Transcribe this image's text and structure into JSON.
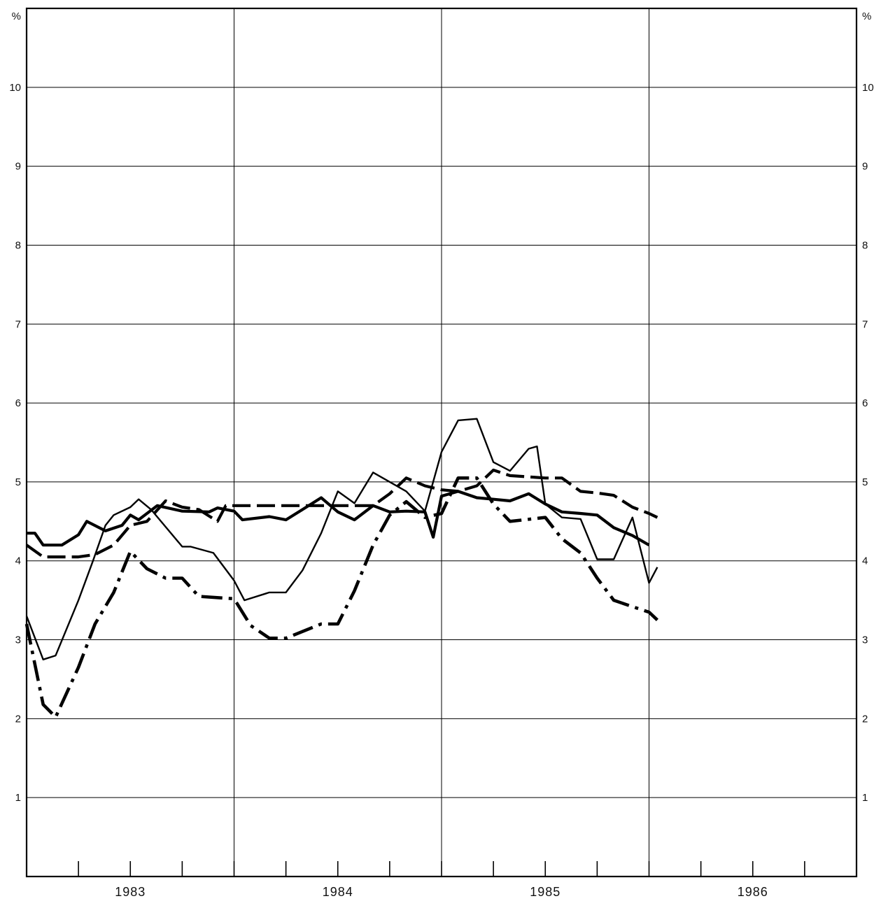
{
  "chart_data": {
    "type": "line",
    "title": "",
    "xlabel": "",
    "ylabel": "",
    "y_unit_left": "%",
    "y_unit_right": "%",
    "ylim": [
      0,
      11
    ],
    "y_ticks": [
      "1",
      "2",
      "3",
      "4",
      "5",
      "6",
      "7",
      "8",
      "9",
      "10"
    ],
    "xlim": [
      1982.5,
      1986.5
    ],
    "x_labels": [
      {
        "x": 1983,
        "text": "1983"
      },
      {
        "x": 1984,
        "text": "1984"
      },
      {
        "x": 1985,
        "text": "1985"
      },
      {
        "x": 1986,
        "text": "1986"
      }
    ],
    "x_gridlines": [
      1983.5,
      1984.5,
      1985.5
    ],
    "grid": true,
    "legend": "none",
    "series": [
      {
        "style": "thin-solid",
        "points": [
          [
            1982.5,
            3.3
          ],
          [
            1982.58,
            2.75
          ],
          [
            1982.64,
            2.8
          ],
          [
            1982.75,
            3.5
          ],
          [
            1982.82,
            4.0
          ],
          [
            1982.88,
            4.45
          ],
          [
            1982.92,
            4.58
          ],
          [
            1983.0,
            4.68
          ],
          [
            1983.04,
            4.78
          ],
          [
            1983.1,
            4.65
          ],
          [
            1983.25,
            4.18
          ],
          [
            1983.29,
            4.18
          ],
          [
            1983.4,
            4.1
          ],
          [
            1983.5,
            3.75
          ],
          [
            1983.55,
            3.5
          ],
          [
            1983.67,
            3.6
          ],
          [
            1983.75,
            3.6
          ],
          [
            1983.83,
            3.88
          ],
          [
            1983.92,
            4.35
          ],
          [
            1984.0,
            4.88
          ],
          [
            1984.08,
            4.73
          ],
          [
            1984.17,
            5.12
          ],
          [
            1984.33,
            4.88
          ],
          [
            1984.42,
            4.63
          ],
          [
            1984.5,
            5.38
          ],
          [
            1984.58,
            5.78
          ],
          [
            1984.67,
            5.8
          ],
          [
            1984.75,
            5.25
          ],
          [
            1984.83,
            5.14
          ],
          [
            1984.92,
            5.42
          ],
          [
            1984.96,
            5.45
          ],
          [
            1985.0,
            4.72
          ],
          [
            1985.08,
            4.55
          ],
          [
            1985.17,
            4.53
          ],
          [
            1985.25,
            4.02
          ],
          [
            1985.33,
            4.02
          ],
          [
            1985.42,
            4.55
          ],
          [
            1985.5,
            3.72
          ],
          [
            1985.54,
            3.92
          ]
        ]
      },
      {
        "style": "thick-solid",
        "points": [
          [
            1982.5,
            4.35
          ],
          [
            1982.54,
            4.35
          ],
          [
            1982.58,
            4.2
          ],
          [
            1982.67,
            4.2
          ],
          [
            1982.75,
            4.33
          ],
          [
            1982.79,
            4.5
          ],
          [
            1982.88,
            4.38
          ],
          [
            1982.96,
            4.45
          ],
          [
            1983.0,
            4.58
          ],
          [
            1983.04,
            4.52
          ],
          [
            1983.08,
            4.6
          ],
          [
            1983.13,
            4.7
          ],
          [
            1983.25,
            4.63
          ],
          [
            1983.38,
            4.62
          ],
          [
            1983.42,
            4.67
          ],
          [
            1983.5,
            4.63
          ],
          [
            1983.54,
            4.52
          ],
          [
            1983.67,
            4.56
          ],
          [
            1983.75,
            4.52
          ],
          [
            1983.83,
            4.65
          ],
          [
            1983.92,
            4.8
          ],
          [
            1984.0,
            4.62
          ],
          [
            1984.08,
            4.52
          ],
          [
            1984.17,
            4.7
          ],
          [
            1984.25,
            4.62
          ],
          [
            1984.33,
            4.63
          ],
          [
            1984.42,
            4.62
          ],
          [
            1984.46,
            4.3
          ],
          [
            1984.5,
            4.82
          ],
          [
            1984.58,
            4.88
          ],
          [
            1984.67,
            4.8
          ],
          [
            1984.75,
            4.78
          ],
          [
            1984.83,
            4.76
          ],
          [
            1984.92,
            4.85
          ],
          [
            1985.0,
            4.72
          ],
          [
            1985.08,
            4.62
          ],
          [
            1985.17,
            4.6
          ],
          [
            1985.25,
            4.58
          ],
          [
            1985.33,
            4.42
          ],
          [
            1985.42,
            4.32
          ],
          [
            1985.5,
            4.2
          ]
        ]
      },
      {
        "style": "thick-dashed",
        "points": [
          [
            1982.5,
            4.2
          ],
          [
            1982.58,
            4.05
          ],
          [
            1982.67,
            4.05
          ],
          [
            1982.75,
            4.05
          ],
          [
            1982.83,
            4.08
          ],
          [
            1982.92,
            4.2
          ],
          [
            1983.0,
            4.45
          ],
          [
            1983.08,
            4.5
          ],
          [
            1983.17,
            4.76
          ],
          [
            1983.25,
            4.68
          ],
          [
            1983.33,
            4.65
          ],
          [
            1983.42,
            4.5
          ],
          [
            1983.46,
            4.7
          ],
          [
            1983.58,
            4.7
          ],
          [
            1983.75,
            4.7
          ],
          [
            1983.92,
            4.7
          ],
          [
            1984.0,
            4.7
          ],
          [
            1984.17,
            4.7
          ],
          [
            1984.25,
            4.85
          ],
          [
            1984.33,
            5.05
          ],
          [
            1984.42,
            4.95
          ],
          [
            1984.5,
            4.9
          ],
          [
            1984.58,
            4.88
          ],
          [
            1984.67,
            4.95
          ],
          [
            1984.75,
            5.15
          ],
          [
            1984.83,
            5.08
          ],
          [
            1985.0,
            5.05
          ],
          [
            1985.08,
            5.05
          ],
          [
            1985.17,
            4.88
          ],
          [
            1985.25,
            4.86
          ],
          [
            1985.33,
            4.83
          ],
          [
            1985.42,
            4.68
          ],
          [
            1985.5,
            4.6
          ],
          [
            1985.54,
            4.55
          ]
        ]
      },
      {
        "style": "thick-dashdot",
        "points": [
          [
            1982.5,
            3.2
          ],
          [
            1982.58,
            2.18
          ],
          [
            1982.64,
            2.02
          ],
          [
            1982.75,
            2.65
          ],
          [
            1982.83,
            3.2
          ],
          [
            1982.92,
            3.6
          ],
          [
            1983.0,
            4.12
          ],
          [
            1983.08,
            3.9
          ],
          [
            1983.17,
            3.78
          ],
          [
            1983.25,
            3.78
          ],
          [
            1983.33,
            3.55
          ],
          [
            1983.5,
            3.52
          ],
          [
            1983.58,
            3.18
          ],
          [
            1983.67,
            3.02
          ],
          [
            1983.75,
            3.02
          ],
          [
            1983.92,
            3.2
          ],
          [
            1984.0,
            3.2
          ],
          [
            1984.08,
            3.62
          ],
          [
            1984.17,
            4.2
          ],
          [
            1984.25,
            4.58
          ],
          [
            1984.33,
            4.75
          ],
          [
            1984.42,
            4.55
          ],
          [
            1984.5,
            4.6
          ],
          [
            1984.58,
            5.05
          ],
          [
            1984.67,
            5.05
          ],
          [
            1984.75,
            4.72
          ],
          [
            1984.83,
            4.5
          ],
          [
            1985.0,
            4.55
          ],
          [
            1985.08,
            4.28
          ],
          [
            1985.17,
            4.1
          ],
          [
            1985.25,
            3.78
          ],
          [
            1985.33,
            3.5
          ],
          [
            1985.42,
            3.42
          ],
          [
            1985.5,
            3.35
          ],
          [
            1985.54,
            3.25
          ]
        ]
      }
    ]
  }
}
